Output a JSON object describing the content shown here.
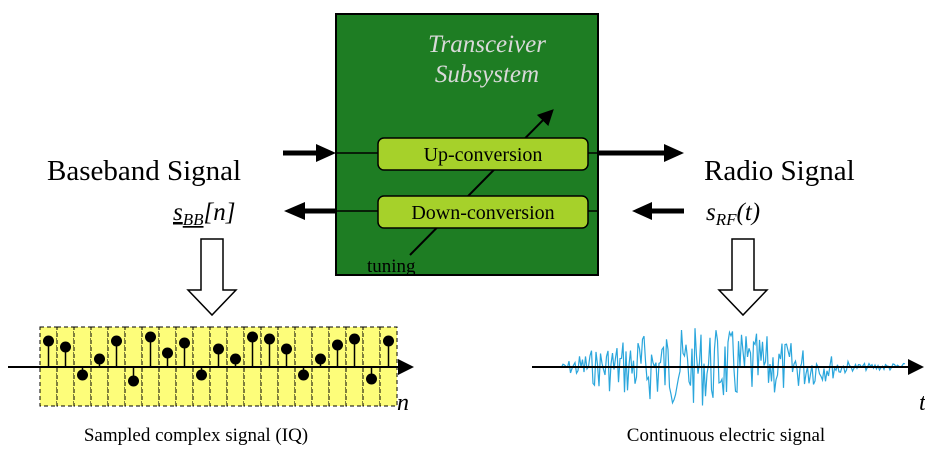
{
  "subsystem": {
    "title_line1": "Transceiver",
    "title_line2": "Subsystem",
    "up_label": "Up-conversion",
    "down_label": "Down-conversion",
    "tuning_label": "tuning",
    "color_fill": "#1e7d23",
    "color_block": "#a6d12a"
  },
  "baseband": {
    "title": "Baseband Signal",
    "symbol_base": "s",
    "symbol_sub": "BB",
    "symbol_arg": "[n]",
    "axis_label": "n",
    "caption": "Sampled complex signal (IQ)",
    "samples": [
      0.65,
      0.5,
      -0.2,
      0.2,
      0.65,
      -0.35,
      0.75,
      0.35,
      0.6,
      -0.2,
      0.45,
      0.2,
      0.75,
      0.7,
      0.45,
      -0.2,
      0.2,
      0.55,
      0.7,
      -0.3,
      0.65
    ],
    "color_cells": "#fdfd7a"
  },
  "radio": {
    "title": "Radio Signal",
    "symbol_base": "s",
    "symbol_sub": "RF",
    "symbol_arg": "(t)",
    "axis_label": "t",
    "caption": "Continuous electric signal",
    "color_wave": "#2aa6dc"
  }
}
